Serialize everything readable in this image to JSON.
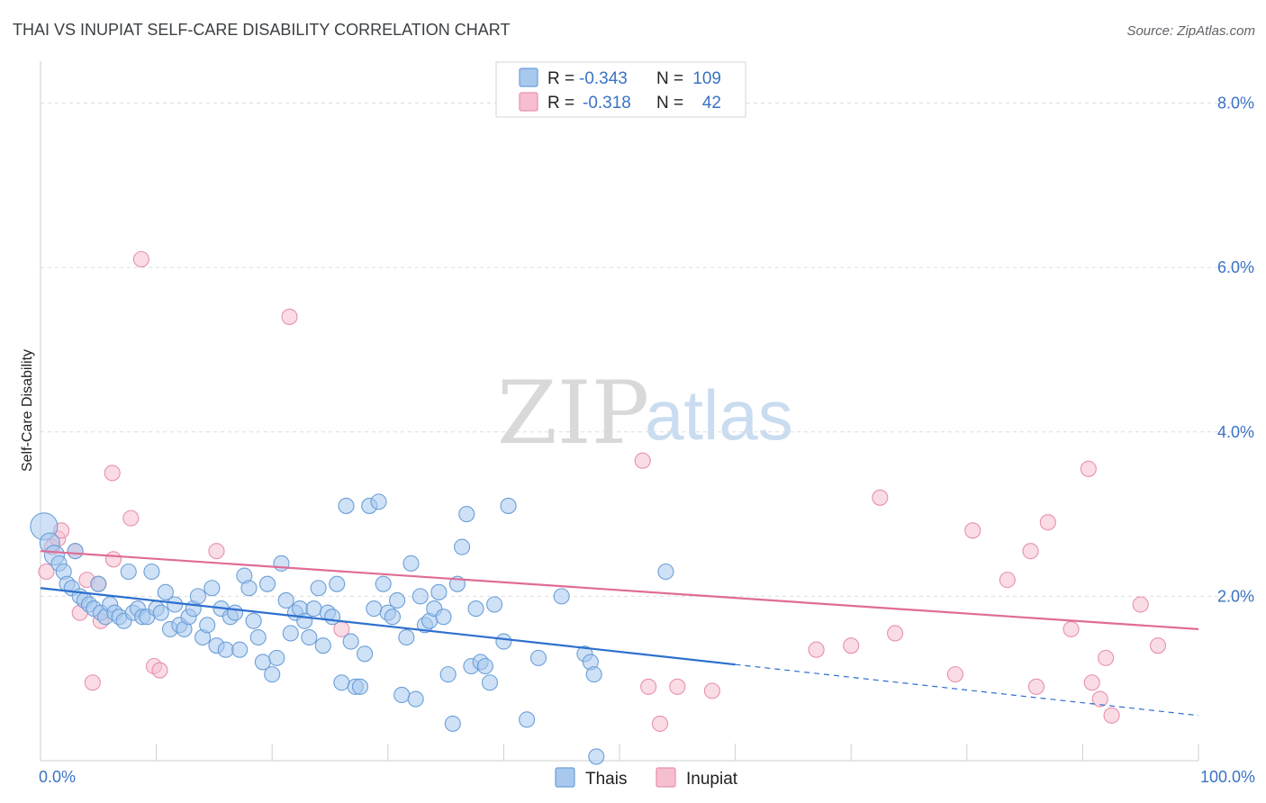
{
  "title": "THAI VS INUPIAT SELF-CARE DISABILITY CORRELATION CHART",
  "source": "Source: ZipAtlas.com",
  "watermark": {
    "zip": "ZIP",
    "atlas": "atlas"
  },
  "legend_top": {
    "rows": [
      {
        "r_label": "R =",
        "r_value": "-0.343",
        "n_label": "N =",
        "n_value": "109"
      },
      {
        "r_label": "R =",
        "r_value": "-0.318",
        "n_label": "N =",
        "n_value": "42"
      }
    ]
  },
  "legend_bottom": {
    "items": [
      "Thais",
      "Inupiat"
    ]
  },
  "colors": {
    "thais_fill": "#a8c8ee",
    "thais_stroke": "#6b9fd8",
    "thais_line": "#2d6fce",
    "inupiat_fill": "#f6bfd0",
    "inupiat_stroke": "#e890ad",
    "inupiat_line": "#e06c96",
    "grid": "#dddddd",
    "tick_text": "#3b73c4"
  },
  "chart_data": {
    "type": "scatter",
    "title": "THAI VS INUPIAT SELF-CARE DISABILITY CORRELATION CHART",
    "xlabel": "",
    "ylabel": "Self-Care Disability",
    "xlim": [
      0,
      100
    ],
    "ylim": [
      0,
      8.4
    ],
    "x_tick_labels": [
      "0.0%",
      "100.0%"
    ],
    "y_ticks": [
      2,
      4,
      6,
      8
    ],
    "y_tick_labels": [
      "2.0%",
      "4.0%",
      "6.0%",
      "8.0%"
    ],
    "grid": true,
    "legend": "top-center",
    "series": [
      {
        "name": "Thais",
        "r": -0.343,
        "n": 109,
        "trend": {
          "x0": 0,
          "y0": 2.1,
          "x1": 60,
          "y1": 1.17,
          "dashed_to_x": 100,
          "dashed_to_y": 0.55
        },
        "points": [
          [
            0.3,
            2.85
          ],
          [
            0.8,
            2.65
          ],
          [
            1.2,
            2.5
          ],
          [
            1.6,
            2.4
          ],
          [
            2.0,
            2.3
          ],
          [
            2.3,
            2.15
          ],
          [
            2.7,
            2.1
          ],
          [
            3.0,
            2.55
          ],
          [
            3.4,
            2.0
          ],
          [
            3.8,
            1.95
          ],
          [
            4.2,
            1.9
          ],
          [
            4.6,
            1.85
          ],
          [
            5.0,
            2.15
          ],
          [
            5.2,
            1.8
          ],
          [
            5.6,
            1.75
          ],
          [
            6.0,
            1.9
          ],
          [
            6.4,
            1.8
          ],
          [
            6.8,
            1.75
          ],
          [
            7.2,
            1.7
          ],
          [
            7.6,
            2.3
          ],
          [
            8.0,
            1.8
          ],
          [
            8.4,
            1.85
          ],
          [
            8.8,
            1.75
          ],
          [
            9.2,
            1.75
          ],
          [
            9.6,
            2.3
          ],
          [
            10.0,
            1.85
          ],
          [
            10.4,
            1.8
          ],
          [
            10.8,
            2.05
          ],
          [
            11.2,
            1.6
          ],
          [
            11.6,
            1.9
          ],
          [
            12.0,
            1.65
          ],
          [
            12.4,
            1.6
          ],
          [
            12.8,
            1.75
          ],
          [
            13.2,
            1.85
          ],
          [
            13.6,
            2.0
          ],
          [
            14.0,
            1.5
          ],
          [
            14.4,
            1.65
          ],
          [
            14.8,
            2.1
          ],
          [
            15.2,
            1.4
          ],
          [
            15.6,
            1.85
          ],
          [
            16.0,
            1.35
          ],
          [
            16.4,
            1.75
          ],
          [
            16.8,
            1.8
          ],
          [
            17.2,
            1.35
          ],
          [
            17.6,
            2.25
          ],
          [
            18.0,
            2.1
          ],
          [
            18.4,
            1.7
          ],
          [
            18.8,
            1.5
          ],
          [
            19.2,
            1.2
          ],
          [
            19.6,
            2.15
          ],
          [
            20.0,
            1.05
          ],
          [
            20.4,
            1.25
          ],
          [
            20.8,
            2.4
          ],
          [
            21.2,
            1.95
          ],
          [
            21.6,
            1.55
          ],
          [
            22.0,
            1.8
          ],
          [
            22.4,
            1.85
          ],
          [
            22.8,
            1.7
          ],
          [
            23.2,
            1.5
          ],
          [
            23.6,
            1.85
          ],
          [
            24.0,
            2.1
          ],
          [
            24.4,
            1.4
          ],
          [
            24.8,
            1.8
          ],
          [
            25.2,
            1.75
          ],
          [
            25.6,
            2.15
          ],
          [
            26.0,
            0.95
          ],
          [
            26.4,
            3.1
          ],
          [
            26.8,
            1.45
          ],
          [
            27.2,
            0.9
          ],
          [
            27.6,
            0.9
          ],
          [
            28.0,
            1.3
          ],
          [
            28.4,
            3.1
          ],
          [
            28.8,
            1.85
          ],
          [
            29.2,
            3.15
          ],
          [
            29.6,
            2.15
          ],
          [
            30.0,
            1.8
          ],
          [
            30.4,
            1.75
          ],
          [
            30.8,
            1.95
          ],
          [
            31.2,
            0.8
          ],
          [
            31.6,
            1.5
          ],
          [
            32.0,
            2.4
          ],
          [
            32.4,
            0.75
          ],
          [
            32.8,
            2.0
          ],
          [
            33.2,
            1.65
          ],
          [
            33.6,
            1.7
          ],
          [
            34.0,
            1.85
          ],
          [
            34.4,
            2.05
          ],
          [
            34.8,
            1.75
          ],
          [
            35.2,
            1.05
          ],
          [
            35.6,
            0.45
          ],
          [
            36.0,
            2.15
          ],
          [
            36.4,
            2.6
          ],
          [
            36.8,
            3.0
          ],
          [
            37.2,
            1.15
          ],
          [
            37.6,
            1.85
          ],
          [
            38.0,
            1.2
          ],
          [
            38.4,
            1.15
          ],
          [
            38.8,
            0.95
          ],
          [
            39.2,
            1.9
          ],
          [
            40.0,
            1.45
          ],
          [
            40.4,
            3.1
          ],
          [
            42.0,
            0.5
          ],
          [
            45.0,
            2.0
          ],
          [
            47.0,
            1.3
          ],
          [
            47.5,
            1.2
          ],
          [
            47.8,
            1.05
          ],
          [
            48.0,
            0.05
          ],
          [
            54.0,
            2.3
          ],
          [
            43.0,
            1.25
          ]
        ]
      },
      {
        "name": "Inupiat",
        "r": -0.318,
        "n": 42,
        "trend": {
          "x0": 0,
          "y0": 2.55,
          "x1": 100,
          "y1": 1.6
        },
        "points": [
          [
            0.5,
            2.3
          ],
          [
            1.0,
            2.6
          ],
          [
            1.5,
            2.7
          ],
          [
            1.8,
            2.8
          ],
          [
            3.0,
            2.55
          ],
          [
            3.4,
            1.8
          ],
          [
            4.0,
            2.2
          ],
          [
            4.5,
            0.95
          ],
          [
            5.0,
            2.15
          ],
          [
            5.2,
            1.7
          ],
          [
            6.2,
            3.5
          ],
          [
            6.3,
            2.45
          ],
          [
            7.8,
            2.95
          ],
          [
            8.7,
            6.1
          ],
          [
            9.8,
            1.15
          ],
          [
            10.3,
            1.1
          ],
          [
            15.2,
            2.55
          ],
          [
            21.5,
            5.4
          ],
          [
            26.0,
            1.6
          ],
          [
            52.0,
            3.65
          ],
          [
            52.5,
            0.9
          ],
          [
            53.5,
            0.45
          ],
          [
            58.0,
            0.85
          ],
          [
            67.0,
            1.35
          ],
          [
            70.0,
            1.4
          ],
          [
            72.5,
            3.2
          ],
          [
            73.8,
            1.55
          ],
          [
            79.0,
            1.05
          ],
          [
            80.5,
            2.8
          ],
          [
            83.5,
            2.2
          ],
          [
            85.5,
            2.55
          ],
          [
            86.0,
            0.9
          ],
          [
            87.0,
            2.9
          ],
          [
            89.0,
            1.6
          ],
          [
            90.5,
            3.55
          ],
          [
            90.8,
            0.95
          ],
          [
            91.5,
            0.75
          ],
          [
            92.0,
            1.25
          ],
          [
            92.5,
            0.55
          ],
          [
            95.0,
            1.9
          ],
          [
            96.5,
            1.4
          ],
          [
            55.0,
            0.9
          ]
        ]
      }
    ]
  }
}
